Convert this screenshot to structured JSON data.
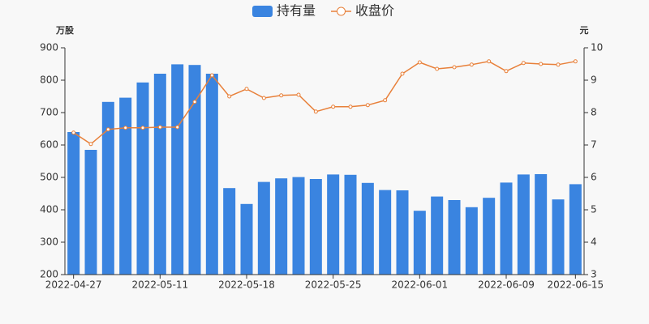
{
  "chart_data": {
    "type": "bar-line",
    "legend": [
      "持有量",
      "收盘价"
    ],
    "y_unit": "万股",
    "y2_unit": "元",
    "categories": [
      "2022-04-27",
      null,
      null,
      null,
      null,
      "2022-05-11",
      null,
      null,
      null,
      null,
      "2022-05-18",
      null,
      null,
      null,
      null,
      "2022-05-25",
      null,
      null,
      null,
      null,
      "2022-06-01",
      null,
      null,
      null,
      null,
      "2022-06-09",
      null,
      null,
      null,
      "2022-06-15"
    ],
    "series": [
      {
        "name": "持有量",
        "color": "#3a84e0",
        "type": "bar",
        "values": [
          640,
          585,
          733,
          746,
          793,
          820,
          849,
          847,
          820,
          467,
          418,
          486,
          497,
          501,
          495,
          509,
          508,
          483,
          461,
          460,
          397,
          441,
          430,
          408,
          437,
          484,
          509,
          510,
          432,
          479
        ]
      },
      {
        "name": "收盘价",
        "color": "#e8803a",
        "type": "line",
        "axis": "y2",
        "values": [
          7.38,
          7.03,
          7.48,
          7.53,
          7.53,
          7.55,
          7.55,
          8.33,
          9.15,
          8.5,
          8.73,
          8.45,
          8.53,
          8.55,
          8.03,
          8.18,
          8.18,
          8.23,
          8.38,
          9.2,
          9.55,
          9.35,
          9.4,
          9.48,
          9.58,
          9.28,
          9.53,
          9.5,
          9.48,
          9.58
        ]
      }
    ],
    "ylim": [
      200,
      900
    ],
    "yticks": [
      200,
      300,
      400,
      500,
      600,
      700,
      800,
      900
    ],
    "y2lim": [
      3,
      10
    ],
    "y2ticks": [
      3,
      4,
      5,
      6,
      7,
      8,
      9,
      10
    ]
  }
}
